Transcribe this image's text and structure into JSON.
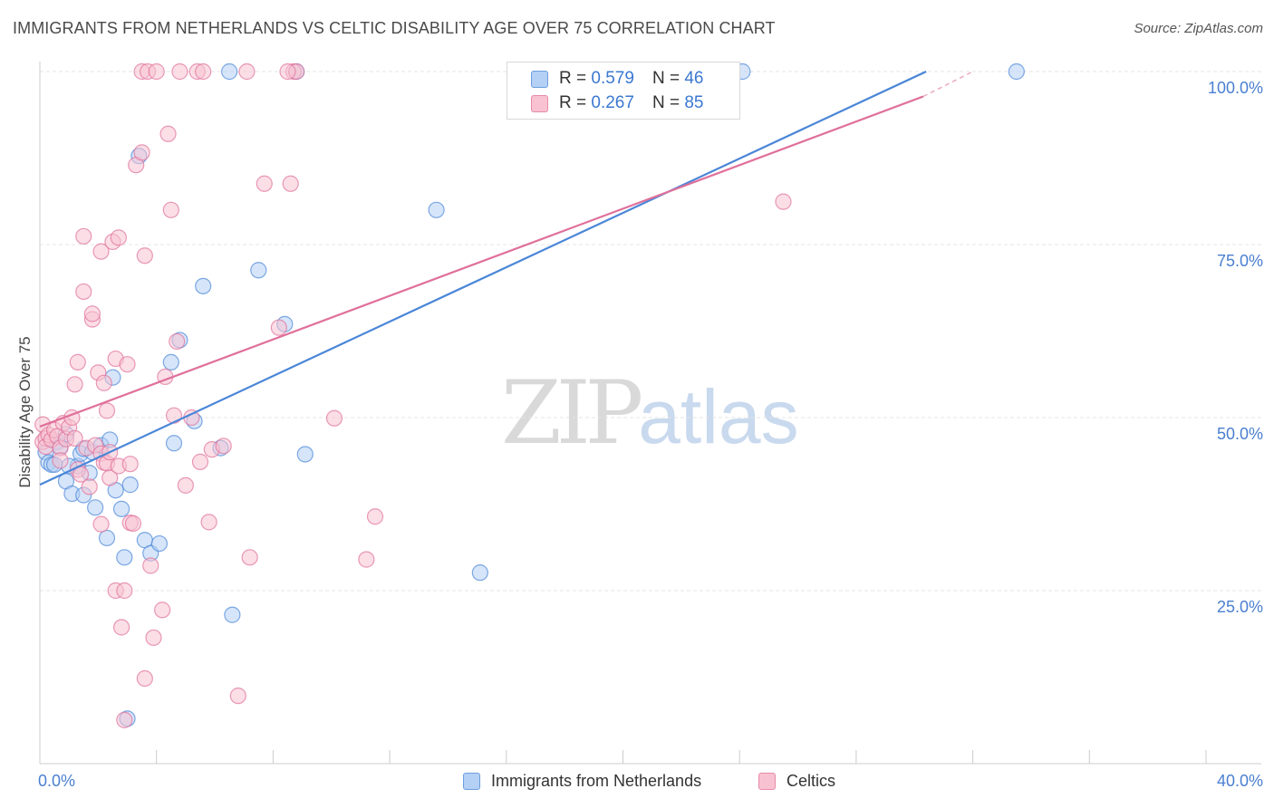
{
  "title": "IMMIGRANTS FROM NETHERLANDS VS CELTIC DISABILITY AGE OVER 75 CORRELATION CHART",
  "source": "Source: ZipAtlas.com",
  "watermark": {
    "zip": "ZIP",
    "atlas": "atlas"
  },
  "legend": {
    "rows": [
      {
        "r_label": "R =",
        "r_value": "0.579",
        "n_label": "N =",
        "n_value": "46",
        "color": "#a8c8f0"
      },
      {
        "r_label": "R =",
        "r_value": "0.267",
        "n_label": "N =",
        "n_value": "85",
        "color": "#f6b6c8"
      }
    ]
  },
  "bottom_legend": [
    {
      "label": "Immigrants from Netherlands",
      "color": "#a8c8f0"
    },
    {
      "label": "Celtics",
      "color": "#f6b6c8"
    }
  ],
  "chart_data": {
    "type": "scatter",
    "title": "IMMIGRANTS FROM NETHERLANDS VS CELTIC DISABILITY AGE OVER 75 CORRELATION CHART",
    "xlabel": "",
    "ylabel": "Disability Age Over 75",
    "xlim": [
      0,
      40
    ],
    "ylim": [
      0,
      100
    ],
    "x_tick_labels": [
      "0.0%",
      "40.0%"
    ],
    "y_ticks": [
      25,
      50,
      75,
      100
    ],
    "y_tick_labels": [
      "25.0%",
      "50.0%",
      "75.0%",
      "100.0%"
    ],
    "grid": true,
    "series": [
      {
        "name": "Immigrants from Netherlands",
        "color": "#4a86d8",
        "fill": "#b4d0f4",
        "trend": {
          "x": [
            0,
            30.4
          ],
          "y": [
            40.3,
            100
          ]
        },
        "points": [
          [
            0.2,
            45.0
          ],
          [
            0.3,
            43.5
          ],
          [
            0.4,
            43.2
          ],
          [
            0.6,
            46.5
          ],
          [
            0.7,
            45.8
          ],
          [
            0.9,
            47.6
          ],
          [
            0.9,
            40.8
          ],
          [
            1.1,
            39.0
          ],
          [
            1.3,
            43.0
          ],
          [
            1.4,
            44.8
          ],
          [
            1.5,
            38.8
          ],
          [
            1.5,
            45.5
          ],
          [
            1.7,
            42.0
          ],
          [
            1.8,
            45.0
          ],
          [
            1.9,
            37.0
          ],
          [
            2.1,
            46.0
          ],
          [
            2.3,
            32.6
          ],
          [
            2.4,
            46.8
          ],
          [
            2.5,
            55.8
          ],
          [
            2.6,
            39.5
          ],
          [
            2.8,
            36.8
          ],
          [
            2.9,
            29.8
          ],
          [
            3.0,
            6.5
          ],
          [
            3.1,
            40.3
          ],
          [
            3.4,
            87.8
          ],
          [
            3.6,
            32.3
          ],
          [
            3.8,
            30.4
          ],
          [
            4.1,
            31.8
          ],
          [
            4.5,
            58.0
          ],
          [
            4.6,
            46.3
          ],
          [
            4.8,
            61.2
          ],
          [
            5.3,
            49.5
          ],
          [
            5.6,
            69.0
          ],
          [
            6.2,
            45.6
          ],
          [
            6.5,
            100.0
          ],
          [
            6.6,
            21.5
          ],
          [
            7.5,
            71.3
          ],
          [
            8.4,
            63.5
          ],
          [
            8.8,
            100.0
          ],
          [
            9.1,
            44.7
          ],
          [
            13.6,
            80.0
          ],
          [
            15.1,
            27.6
          ],
          [
            24.1,
            100.0
          ],
          [
            33.5,
            100.0
          ],
          [
            1.0,
            43.0
          ],
          [
            0.5,
            43.2
          ]
        ]
      },
      {
        "name": "Celtics",
        "color": "#e0709a",
        "fill": "#f8c2d2",
        "trend": {
          "x": [
            0,
            30.3
          ],
          "y": [
            48.7,
            96.4
          ]
        },
        "trend_dashed": {
          "x": [
            30.3,
            32.0
          ],
          "y": [
            96.4,
            100.0
          ]
        },
        "points": [
          [
            0.1,
            49.0
          ],
          [
            0.1,
            46.5
          ],
          [
            0.2,
            47.0
          ],
          [
            0.2,
            45.8
          ],
          [
            0.3,
            47.5
          ],
          [
            0.4,
            46.8
          ],
          [
            0.5,
            48.2
          ],
          [
            0.6,
            47.3
          ],
          [
            0.7,
            45.6
          ],
          [
            0.7,
            43.8
          ],
          [
            0.8,
            49.2
          ],
          [
            0.9,
            46.9
          ],
          [
            1.0,
            48.6
          ],
          [
            1.1,
            50.0
          ],
          [
            1.2,
            54.8
          ],
          [
            1.3,
            58.0
          ],
          [
            1.3,
            42.5
          ],
          [
            1.4,
            41.8
          ],
          [
            1.5,
            68.2
          ],
          [
            1.5,
            76.2
          ],
          [
            1.6,
            45.6
          ],
          [
            1.7,
            40.0
          ],
          [
            1.8,
            64.2
          ],
          [
            1.8,
            65.0
          ],
          [
            1.9,
            46.0
          ],
          [
            2.0,
            56.5
          ],
          [
            2.1,
            44.8
          ],
          [
            2.1,
            74.0
          ],
          [
            2.1,
            34.6
          ],
          [
            2.2,
            43.5
          ],
          [
            2.2,
            55.0
          ],
          [
            2.3,
            51.0
          ],
          [
            2.3,
            43.4
          ],
          [
            2.4,
            41.3
          ],
          [
            2.5,
            75.4
          ],
          [
            2.6,
            25.0
          ],
          [
            2.6,
            58.5
          ],
          [
            2.7,
            43.0
          ],
          [
            2.7,
            76.0
          ],
          [
            2.8,
            19.7
          ],
          [
            2.9,
            6.3
          ],
          [
            2.9,
            25.0
          ],
          [
            3.0,
            57.7
          ],
          [
            3.1,
            34.8
          ],
          [
            3.1,
            43.3
          ],
          [
            3.2,
            34.7
          ],
          [
            3.3,
            86.5
          ],
          [
            3.5,
            88.3
          ],
          [
            3.6,
            73.4
          ],
          [
            3.8,
            28.6
          ],
          [
            3.6,
            12.3
          ],
          [
            3.5,
            100.0
          ],
          [
            3.7,
            100.0
          ],
          [
            3.9,
            18.2
          ],
          [
            4.2,
            22.2
          ],
          [
            4.3,
            55.9
          ],
          [
            4.4,
            91.0
          ],
          [
            4.5,
            80.0
          ],
          [
            4.6,
            50.3
          ],
          [
            4.7,
            61.0
          ],
          [
            4.8,
            100.0
          ],
          [
            5.0,
            40.2
          ],
          [
            5.2,
            50.0
          ],
          [
            5.4,
            100.0
          ],
          [
            5.5,
            43.6
          ],
          [
            5.6,
            100.0
          ],
          [
            5.8,
            34.9
          ],
          [
            5.9,
            45.4
          ],
          [
            6.3,
            45.9
          ],
          [
            6.8,
            9.8
          ],
          [
            7.2,
            29.8
          ],
          [
            7.7,
            83.8
          ],
          [
            8.2,
            63.0
          ],
          [
            8.6,
            83.8
          ],
          [
            8.7,
            100.0
          ],
          [
            8.8,
            100.0
          ],
          [
            10.1,
            49.9
          ],
          [
            11.5,
            35.7
          ],
          [
            11.2,
            29.5
          ],
          [
            4.0,
            100.0
          ],
          [
            7.1,
            100.0
          ],
          [
            8.5,
            100.0
          ],
          [
            25.5,
            81.2
          ],
          [
            2.4,
            45.0
          ],
          [
            1.2,
            47.0
          ]
        ]
      }
    ]
  }
}
